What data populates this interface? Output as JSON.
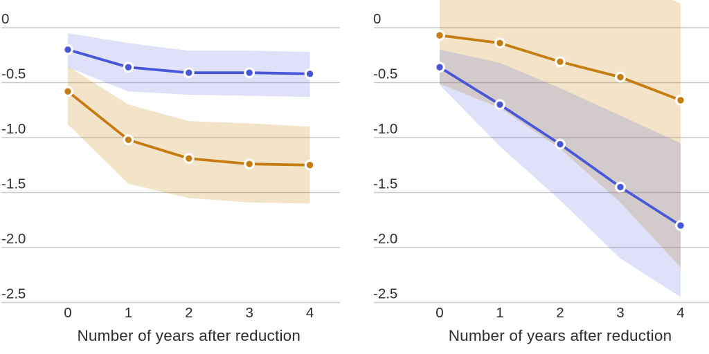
{
  "figure": {
    "background_color": "#ffffff",
    "text_color": "#2d2d2d",
    "gridline_color": "#c9c9c9",
    "blue_color": "#4757d8",
    "orange_color": "#c57c11",
    "blue_band_color": "rgba(71,87,216,0.18)",
    "orange_band_color": "rgba(199,133,22,0.23)",
    "marker_ring_color": "#ffffff"
  },
  "chart_data": [
    {
      "type": "line",
      "panel": "left",
      "title": "",
      "xlabel": "Number of years after reduction",
      "ylabel": "",
      "x": [
        0,
        1,
        2,
        3,
        4
      ],
      "x_tick_labels": [
        "0",
        "1",
        "2",
        "3",
        "4"
      ],
      "y_tick_labels": [
        "0",
        "-0.5",
        "-1.0",
        "-1.5",
        "-2.0",
        "-2.5"
      ],
      "y_tick_values": [
        0,
        -0.5,
        -1.0,
        -1.5,
        -2.0,
        -2.5
      ],
      "ylim": [
        -2.6,
        0.25
      ],
      "grid": true,
      "legend": "none",
      "series": [
        {
          "name": "orange",
          "color_key": "orange_color",
          "band_key": "orange_band_color",
          "values": [
            -0.58,
            -1.02,
            -1.19,
            -1.24,
            -1.25
          ],
          "ci_upper": [
            -0.35,
            -0.7,
            -0.85,
            -0.87,
            -0.9
          ],
          "ci_lower": [
            -0.88,
            -1.42,
            -1.55,
            -1.59,
            -1.6
          ]
        },
        {
          "name": "blue",
          "color_key": "blue_color",
          "band_key": "blue_band_color",
          "values": [
            -0.2,
            -0.36,
            -0.41,
            -0.41,
            -0.42
          ],
          "ci_upper": [
            -0.05,
            -0.14,
            -0.21,
            -0.21,
            -0.22
          ],
          "ci_lower": [
            -0.36,
            -0.58,
            -0.61,
            -0.62,
            -0.63
          ]
        }
      ]
    },
    {
      "type": "line",
      "panel": "right",
      "title": "",
      "xlabel": "Number of years after reduction",
      "ylabel": "",
      "x": [
        0,
        1,
        2,
        3,
        4
      ],
      "x_tick_labels": [
        "0",
        "1",
        "2",
        "3",
        "4"
      ],
      "y_tick_labels": [
        "0",
        "-0.5",
        "-1.0",
        "-1.5",
        "-2.0",
        "-2.5"
      ],
      "y_tick_values": [
        0,
        -0.5,
        -1.0,
        -1.5,
        -2.0,
        -2.5
      ],
      "ylim": [
        -2.6,
        0.25
      ],
      "grid": true,
      "legend": "none",
      "series": [
        {
          "name": "orange",
          "color_key": "orange_color",
          "band_key": "orange_band_color",
          "values": [
            -0.07,
            -0.14,
            -0.31,
            -0.45,
            -0.66
          ],
          "ci_upper": [
            0.45,
            0.5,
            0.5,
            0.45,
            0.22
          ],
          "ci_lower": [
            -0.51,
            -0.73,
            -1.1,
            -1.59,
            -2.18
          ]
        },
        {
          "name": "blue",
          "color_key": "blue_color",
          "band_key": "blue_band_color",
          "values": [
            -0.36,
            -0.7,
            -1.06,
            -1.45,
            -1.8
          ],
          "ci_upper": [
            -0.2,
            -0.32,
            -0.55,
            -0.8,
            -1.05
          ],
          "ci_lower": [
            -0.52,
            -1.08,
            -1.57,
            -2.1,
            -2.45
          ]
        }
      ]
    }
  ]
}
